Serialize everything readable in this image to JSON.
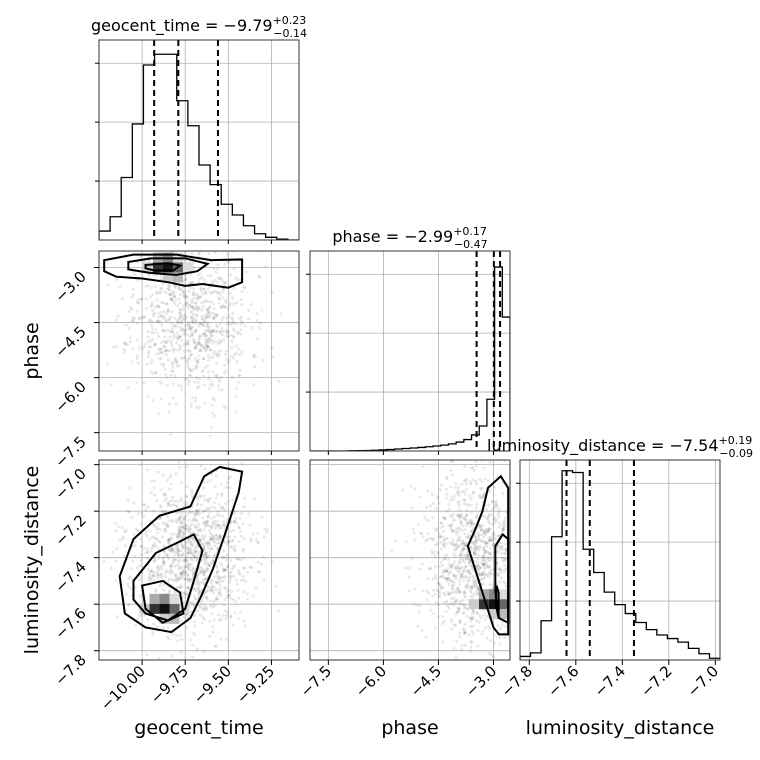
{
  "chart_data": {
    "type": "corner",
    "parameters": [
      {
        "name": "geocent_time",
        "median": -9.79,
        "err_plus": 0.23,
        "err_minus": 0.14,
        "title_text": "geocent_time = −9.79",
        "sup": "+0.23",
        "sub": "−0.14",
        "range": [
          -10.25,
          -9.09
        ],
        "ticks": [
          -10.0,
          -9.75,
          -9.5,
          -9.25
        ],
        "tick_labels": [
          "−10.00",
          "−9.75",
          "−9.50",
          "−9.25"
        ],
        "quantiles": [
          -9.93,
          -9.79,
          -9.56
        ],
        "hist": [
          0.05,
          0.13,
          0.35,
          0.65,
          0.98,
          1.04,
          1.04,
          0.78,
          0.64,
          0.42,
          0.31,
          0.2,
          0.14,
          0.08,
          0.035,
          0.015,
          0.005,
          0.0
        ]
      },
      {
        "name": "phase",
        "median": -2.99,
        "err_plus": 0.17,
        "err_minus": 0.47,
        "title_text": "phase = −2.99",
        "sup": "+0.17",
        "sub": "−0.47",
        "range": [
          -8.0,
          -2.55
        ],
        "ticks": [
          -7.5,
          -6.0,
          -4.5,
          -3.0
        ],
        "tick_labels": [
          "−7.5",
          "−6.0",
          "−4.5",
          "−3.0"
        ],
        "quantiles": [
          -3.46,
          -2.99,
          -2.82
        ],
        "hist": [
          0.0,
          0.0,
          0.0,
          0.0,
          0.0,
          0.001,
          0.002,
          0.003,
          0.004,
          0.006,
          0.008,
          0.011,
          0.014,
          0.017,
          0.02,
          0.024,
          0.028,
          0.033,
          0.04,
          0.05,
          0.064,
          0.09,
          0.14,
          0.29,
          1.03,
          0.75
        ]
      },
      {
        "name": "luminosity_distance",
        "median": -7.54,
        "err_plus": 0.19,
        "err_minus": 0.09,
        "title_text": "luminosity_distance = −7.54",
        "sup": "+0.19",
        "sub": "−0.09",
        "range": [
          -7.84,
          -6.98
        ],
        "ticks": [
          -7.8,
          -7.6,
          -7.4,
          -7.2,
          -7.0
        ],
        "tick_labels": [
          "−7.8",
          "−7.6",
          "−7.4",
          "−7.2",
          "−7.0"
        ],
        "quantiles": [
          -7.64,
          -7.54,
          -7.35
        ],
        "hist": [
          0.02,
          0.04,
          0.22,
          0.69,
          1.06,
          1.05,
          0.62,
          0.49,
          0.38,
          0.31,
          0.26,
          0.21,
          0.17,
          0.14,
          0.12,
          0.1,
          0.065,
          0.035,
          0.01
        ]
      }
    ],
    "hist_yticks": [
      0.33,
      0.66,
      0.99
    ],
    "pairs": [
      {
        "x": 0,
        "y": 1,
        "peak": [
          -9.85,
          -3.0
        ],
        "contours": [
          [
            [
              -10.22,
              -2.8
            ],
            [
              -10.05,
              -2.65
            ],
            [
              -9.8,
              -2.65
            ],
            [
              -9.6,
              -2.8
            ],
            [
              -9.42,
              -2.78
            ],
            [
              -9.42,
              -3.4
            ],
            [
              -9.5,
              -3.55
            ],
            [
              -9.65,
              -3.45
            ],
            [
              -9.75,
              -3.5
            ],
            [
              -9.85,
              -3.4
            ],
            [
              -10.0,
              -3.3
            ],
            [
              -10.15,
              -3.25
            ],
            [
              -10.22,
              -3.1
            ]
          ],
          [
            [
              -10.08,
              -2.85
            ],
            [
              -9.95,
              -2.75
            ],
            [
              -9.75,
              -2.75
            ],
            [
              -9.62,
              -2.9
            ],
            [
              -9.68,
              -3.1
            ],
            [
              -9.8,
              -3.2
            ],
            [
              -9.95,
              -3.15
            ],
            [
              -10.08,
              -3.05
            ]
          ],
          [
            [
              -9.98,
              -2.93
            ],
            [
              -9.85,
              -2.88
            ],
            [
              -9.78,
              -2.95
            ],
            [
              -9.82,
              -3.08
            ],
            [
              -9.93,
              -3.08
            ],
            [
              -9.98,
              -3.02
            ]
          ]
        ],
        "samples": {
          "center": [
            -9.72,
            -4.4
          ],
          "spread": [
            0.17,
            1.05
          ],
          "count": 900,
          "seed": 11
        }
      },
      {
        "x": 0,
        "y": 2,
        "peak": [
          -9.87,
          -7.62
        ],
        "contours": [
          [
            [
              -10.13,
              -7.48
            ],
            [
              -10.05,
              -7.32
            ],
            [
              -9.9,
              -7.22
            ],
            [
              -9.72,
              -7.18
            ],
            [
              -9.64,
              -7.05
            ],
            [
              -9.55,
              -7.01
            ],
            [
              -9.42,
              -7.03
            ],
            [
              -9.44,
              -7.12
            ],
            [
              -9.52,
              -7.3
            ],
            [
              -9.59,
              -7.45
            ],
            [
              -9.66,
              -7.57
            ],
            [
              -9.72,
              -7.66
            ],
            [
              -9.83,
              -7.72
            ],
            [
              -9.98,
              -7.7
            ],
            [
              -10.1,
              -7.64
            ]
          ],
          [
            [
              -10.05,
              -7.5
            ],
            [
              -9.92,
              -7.38
            ],
            [
              -9.78,
              -7.33
            ],
            [
              -9.7,
              -7.3
            ],
            [
              -9.65,
              -7.37
            ],
            [
              -9.7,
              -7.5
            ],
            [
              -9.75,
              -7.62
            ],
            [
              -9.85,
              -7.67
            ],
            [
              -9.98,
              -7.64
            ],
            [
              -10.05,
              -7.58
            ]
          ],
          [
            [
              -10.0,
              -7.52
            ],
            [
              -9.88,
              -7.5
            ],
            [
              -9.78,
              -7.55
            ],
            [
              -9.76,
              -7.64
            ],
            [
              -9.88,
              -7.68
            ],
            [
              -9.98,
              -7.62
            ]
          ]
        ],
        "samples": {
          "center": [
            -9.72,
            -7.4
          ],
          "spread": [
            0.17,
            0.17
          ],
          "count": 1200,
          "seed": 23
        }
      },
      {
        "x": 1,
        "y": 2,
        "peak": [
          -2.99,
          -7.6
        ],
        "contours": [
          [
            [
              -2.6,
              -7.73
            ],
            [
              -2.85,
              -7.73
            ],
            [
              -3.0,
              -7.7
            ],
            [
              -3.2,
              -7.6
            ],
            [
              -3.5,
              -7.45
            ],
            [
              -3.7,
              -7.35
            ],
            [
              -3.5,
              -7.28
            ],
            [
              -3.3,
              -7.2
            ],
            [
              -3.15,
              -7.1
            ],
            [
              -2.8,
              -7.05
            ],
            [
              -2.6,
              -7.1
            ]
          ],
          [
            [
              -2.6,
              -7.68
            ],
            [
              -2.85,
              -7.66
            ],
            [
              -2.95,
              -7.55
            ],
            [
              -2.95,
              -7.35
            ],
            [
              -2.75,
              -7.3
            ],
            [
              -2.6,
              -7.32
            ]
          ],
          [
            [
              -2.86,
              -7.66
            ],
            [
              -2.94,
              -7.6
            ],
            [
              -2.92,
              -7.52
            ],
            [
              -2.86,
              -7.55
            ]
          ]
        ],
        "samples": {
          "center": [
            -3.5,
            -7.4
          ],
          "spread": [
            0.7,
            0.18
          ],
          "count": 1100,
          "seed": 37
        }
      }
    ]
  }
}
